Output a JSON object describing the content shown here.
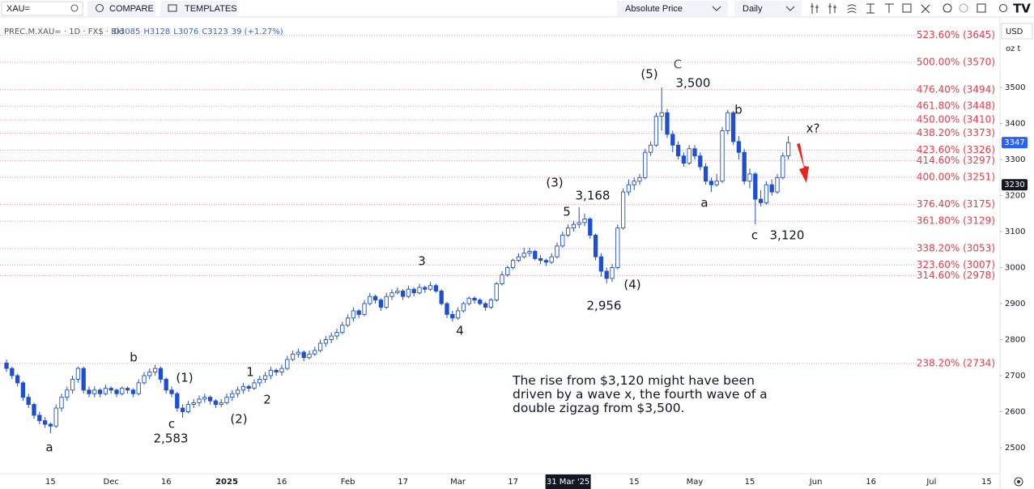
{
  "toolbar": {
    "symbol": "XAU=",
    "compare": "COMPARE",
    "templates": "TEMPLATES",
    "price_mode": "Absolute Price",
    "interval": "Daily"
  },
  "chart_data": {
    "type": "candlestick",
    "symbol_info": "PREC.M.XAU= · 1D · FX$ · Bid",
    "ohlc_legend": [
      "O3085",
      "H3128",
      "L3076",
      "C3123",
      "39 (+1.27%)"
    ],
    "currency": "USD",
    "unit": "oz t",
    "categories": [
      null,
      null,
      null,
      null,
      null,
      null,
      null,
      null,
      "15",
      null,
      null,
      null,
      null,
      null,
      null,
      null,
      null,
      null,
      null,
      "Dec",
      null,
      null,
      null,
      null,
      null,
      null,
      null,
      null,
      null,
      "16",
      null,
      null,
      null,
      null,
      null,
      null,
      null,
      null,
      null,
      null,
      "2025",
      null,
      null,
      null,
      null,
      null,
      null,
      null,
      null,
      null,
      "16",
      null,
      null,
      null,
      null,
      null,
      null,
      null,
      null,
      null,
      null,
      null,
      "Feb",
      null,
      null,
      null,
      null,
      null,
      null,
      null,
      null,
      null,
      "17",
      null,
      null,
      null,
      null,
      null,
      null,
      null,
      null,
      null,
      "Mar",
      null,
      null,
      null,
      null,
      null,
      null,
      null,
      null,
      null,
      "17",
      null,
      null,
      null,
      null,
      null,
      null,
      null,
      null,
      null,
      "31 Mar '25",
      null,
      null,
      null,
      null,
      null,
      null,
      null,
      null,
      null,
      null,
      null,
      "15",
      null,
      null,
      null,
      null,
      null,
      null,
      null,
      null,
      null,
      null,
      "May",
      null,
      null,
      null,
      null,
      null,
      null,
      null,
      null,
      null,
      "15",
      null,
      null,
      null,
      null,
      null,
      null,
      null,
      null,
      null,
      null,
      null,
      "Jun",
      null,
      null,
      null,
      null,
      null,
      null,
      null,
      null,
      null,
      "16",
      null,
      null,
      null,
      null,
      null,
      null,
      null,
      null,
      null,
      null,
      "Jul",
      null,
      null,
      null,
      null,
      null,
      null,
      null,
      null,
      null,
      "15",
      null,
      null
    ],
    "values": [
      [
        2735,
        2745,
        2710,
        2720
      ],
      [
        2720,
        2725,
        2690,
        2700
      ],
      [
        2700,
        2705,
        2670,
        2680
      ],
      [
        2680,
        2685,
        2630,
        2640
      ],
      [
        2640,
        2650,
        2610,
        2620
      ],
      [
        2620,
        2625,
        2580,
        2590
      ],
      [
        2590,
        2600,
        2565,
        2575
      ],
      [
        2575,
        2585,
        2555,
        2565
      ],
      [
        2565,
        2570,
        2540,
        2560
      ],
      [
        2560,
        2620,
        2555,
        2610
      ],
      [
        2610,
        2650,
        2600,
        2640
      ],
      [
        2640,
        2670,
        2630,
        2660
      ],
      [
        2660,
        2700,
        2650,
        2690
      ],
      [
        2690,
        2725,
        2680,
        2720
      ],
      [
        2720,
        2725,
        2650,
        2660
      ],
      [
        2660,
        2670,
        2640,
        2650
      ],
      [
        2650,
        2670,
        2640,
        2660
      ],
      [
        2660,
        2665,
        2640,
        2650
      ],
      [
        2650,
        2675,
        2645,
        2665
      ],
      [
        2665,
        2670,
        2650,
        2660
      ],
      [
        2660,
        2665,
        2640,
        2650
      ],
      [
        2650,
        2670,
        2645,
        2665
      ],
      [
        2665,
        2670,
        2650,
        2660
      ],
      [
        2660,
        2665,
        2640,
        2650
      ],
      [
        2650,
        2690,
        2645,
        2680
      ],
      [
        2680,
        2710,
        2675,
        2700
      ],
      [
        2700,
        2720,
        2690,
        2710
      ],
      [
        2710,
        2730,
        2700,
        2720
      ],
      [
        2720,
        2725,
        2680,
        2690
      ],
      [
        2690,
        2695,
        2650,
        2660
      ],
      [
        2660,
        2670,
        2640,
        2650
      ],
      [
        2650,
        2655,
        2600,
        2610
      ],
      [
        2610,
        2620,
        2583,
        2600
      ],
      [
        2600,
        2630,
        2595,
        2620
      ],
      [
        2620,
        2635,
        2610,
        2625
      ],
      [
        2625,
        2645,
        2615,
        2635
      ],
      [
        2635,
        2650,
        2625,
        2640
      ],
      [
        2640,
        2645,
        2620,
        2630
      ],
      [
        2630,
        2635,
        2610,
        2620
      ],
      [
        2620,
        2635,
        2612,
        2625
      ],
      [
        2625,
        2650,
        2620,
        2640
      ],
      [
        2640,
        2660,
        2630,
        2650
      ],
      [
        2650,
        2670,
        2640,
        2660
      ],
      [
        2660,
        2680,
        2650,
        2670
      ],
      [
        2670,
        2675,
        2655,
        2665
      ],
      [
        2665,
        2690,
        2660,
        2680
      ],
      [
        2680,
        2700,
        2670,
        2690
      ],
      [
        2690,
        2710,
        2680,
        2700
      ],
      [
        2700,
        2725,
        2690,
        2715
      ],
      [
        2715,
        2720,
        2700,
        2710
      ],
      [
        2710,
        2730,
        2700,
        2720
      ],
      [
        2720,
        2755,
        2715,
        2745
      ],
      [
        2745,
        2770,
        2740,
        2760
      ],
      [
        2760,
        2775,
        2750,
        2765
      ],
      [
        2765,
        2770,
        2740,
        2750
      ],
      [
        2750,
        2770,
        2745,
        2760
      ],
      [
        2760,
        2780,
        2755,
        2770
      ],
      [
        2770,
        2800,
        2765,
        2790
      ],
      [
        2790,
        2810,
        2780,
        2800
      ],
      [
        2800,
        2820,
        2790,
        2810
      ],
      [
        2810,
        2830,
        2800,
        2820
      ],
      [
        2820,
        2850,
        2815,
        2840
      ],
      [
        2840,
        2870,
        2835,
        2860
      ],
      [
        2860,
        2890,
        2850,
        2880
      ],
      [
        2880,
        2885,
        2860,
        2870
      ],
      [
        2870,
        2910,
        2865,
        2900
      ],
      [
        2900,
        2930,
        2895,
        2920
      ],
      [
        2920,
        2925,
        2900,
        2910
      ],
      [
        2910,
        2915,
        2880,
        2890
      ],
      [
        2890,
        2930,
        2885,
        2920
      ],
      [
        2920,
        2940,
        2910,
        2930
      ],
      [
        2930,
        2945,
        2925,
        2935
      ],
      [
        2935,
        2940,
        2910,
        2920
      ],
      [
        2920,
        2950,
        2915,
        2940
      ],
      [
        2940,
        2945,
        2920,
        2930
      ],
      [
        2930,
        2955,
        2925,
        2945
      ],
      [
        2945,
        2950,
        2930,
        2940
      ],
      [
        2940,
        2960,
        2935,
        2950
      ],
      [
        2950,
        2955,
        2930,
        2935
      ],
      [
        2935,
        2940,
        2895,
        2900
      ],
      [
        2900,
        2905,
        2860,
        2870
      ],
      [
        2870,
        2880,
        2850,
        2860
      ],
      [
        2860,
        2890,
        2855,
        2880
      ],
      [
        2880,
        2905,
        2875,
        2900
      ],
      [
        2900,
        2920,
        2895,
        2915
      ],
      [
        2915,
        2920,
        2900,
        2910
      ],
      [
        2910,
        2915,
        2895,
        2900
      ],
      [
        2900,
        2905,
        2880,
        2890
      ],
      [
        2890,
        2915,
        2885,
        2910
      ],
      [
        2910,
        2960,
        2905,
        2955
      ],
      [
        2955,
        2990,
        2950,
        2980
      ],
      [
        2980,
        3005,
        2975,
        3000
      ],
      [
        3000,
        3025,
        2995,
        3020
      ],
      [
        3020,
        3040,
        3015,
        3030
      ],
      [
        3030,
        3055,
        3025,
        3040
      ],
      [
        3040,
        3055,
        3030,
        3045
      ],
      [
        3045,
        3050,
        3020,
        3025
      ],
      [
        3025,
        3035,
        3010,
        3020
      ],
      [
        3020,
        3025,
        3005,
        3015
      ],
      [
        3015,
        3040,
        3010,
        3030
      ],
      [
        3030,
        3070,
        3025,
        3060
      ],
      [
        3060,
        3100,
        3055,
        3090
      ],
      [
        3090,
        3120,
        3085,
        3110
      ],
      [
        3110,
        3130,
        3100,
        3120
      ],
      [
        3120,
        3168,
        3110,
        3125
      ],
      [
        3125,
        3150,
        3115,
        3135
      ],
      [
        3135,
        3140,
        3080,
        3090
      ],
      [
        3090,
        3095,
        3020,
        3030
      ],
      [
        3030,
        3040,
        2975,
        2990
      ],
      [
        2990,
        3000,
        2956,
        2970
      ],
      [
        2970,
        3010,
        2960,
        3000
      ],
      [
        3000,
        3120,
        2995,
        3110
      ],
      [
        3110,
        3220,
        3105,
        3210
      ],
      [
        3210,
        3245,
        3200,
        3230
      ],
      [
        3230,
        3250,
        3215,
        3240
      ],
      [
        3240,
        3260,
        3230,
        3250
      ],
      [
        3250,
        3330,
        3245,
        3320
      ],
      [
        3320,
        3350,
        3310,
        3340
      ],
      [
        3340,
        3430,
        3335,
        3420
      ],
      [
        3420,
        3500,
        3380,
        3430
      ],
      [
        3430,
        3440,
        3360,
        3370
      ],
      [
        3370,
        3380,
        3320,
        3340
      ],
      [
        3340,
        3350,
        3300,
        3310
      ],
      [
        3310,
        3320,
        3280,
        3290
      ],
      [
        3290,
        3340,
        3285,
        3330
      ],
      [
        3330,
        3340,
        3300,
        3310
      ],
      [
        3310,
        3320,
        3270,
        3280
      ],
      [
        3280,
        3290,
        3230,
        3240
      ],
      [
        3240,
        3250,
        3210,
        3230
      ],
      [
        3230,
        3260,
        3225,
        3240
      ],
      [
        3240,
        3390,
        3235,
        3380
      ],
      [
        3380,
        3438,
        3370,
        3430
      ],
      [
        3430,
        3435,
        3340,
        3350
      ],
      [
        3350,
        3365,
        3300,
        3320
      ],
      [
        3320,
        3330,
        3230,
        3240
      ],
      [
        3240,
        3275,
        3220,
        3260
      ],
      [
        3260,
        3265,
        3120,
        3190
      ],
      [
        3190,
        3215,
        3170,
        3180
      ],
      [
        3180,
        3240,
        3175,
        3230
      ],
      [
        3230,
        3245,
        3200,
        3210
      ],
      [
        3210,
        3260,
        3205,
        3250
      ],
      [
        3250,
        3320,
        3245,
        3310
      ],
      [
        3310,
        3365,
        3300,
        3347
      ],
      null,
      null,
      null,
      null,
      null,
      null,
      null,
      null,
      null,
      null,
      null,
      null,
      null,
      null,
      null,
      null,
      null,
      null,
      null,
      null,
      null,
      null,
      null,
      null,
      null,
      null,
      null,
      null,
      null,
      null,
      null,
      null,
      null,
      null,
      null,
      null,
      null,
      null
    ],
    "up_color": "#ffffff",
    "down_color": "#1e4fd0",
    "border_color": "#1e4fd0",
    "ylim": [
      2428,
      3698
    ],
    "yticks": [
      2500,
      2600,
      2700,
      2800,
      2900,
      3000,
      3100,
      3200,
      3300,
      3400,
      3500
    ],
    "level_color": "#f23645",
    "levels": [
      {
        "value": 3645,
        "label": "523.60% (3645)"
      },
      {
        "value": 3570,
        "label": "500.00% (3570)"
      },
      {
        "value": 3494,
        "label": "476.40% (3494)"
      },
      {
        "value": 3448,
        "label": "461.80% (3448)"
      },
      {
        "value": 3410,
        "label": "450.00% (3410)"
      },
      {
        "value": 3373,
        "label": "438.20% (3373)"
      },
      {
        "value": 3326,
        "label": "423.60% (3326)"
      },
      {
        "value": 3297,
        "label": "414.60% (3297)"
      },
      {
        "value": 3251,
        "label": "400.00% (3251)"
      },
      {
        "value": 3175,
        "label": "376.40% (3175)"
      },
      {
        "value": 3129,
        "label": "361.80% (3129)"
      },
      {
        "value": 3053,
        "label": "338.20% (3053)"
      },
      {
        "value": 3007,
        "label": "323.60% (3007)"
      },
      {
        "value": 2978,
        "label": "314.60% (2978)"
      },
      {
        "value": 2734,
        "label": "238.20% (2734)"
      }
    ],
    "last_price": 3347,
    "last_price_color": "#2962ff",
    "crosshair": {
      "x": 102,
      "y": 3230
    },
    "annotations": [
      "a",
      "b",
      "(1)",
      "c",
      "2,583",
      "(2)",
      "1",
      "2",
      "3",
      "4",
      "(3)",
      "3,168",
      "5",
      "(4)",
      "2,956",
      "(5)",
      "C",
      "3,500",
      "b",
      "a",
      "c",
      "3,120",
      "x?"
    ],
    "note": "The rise from $3,120 might have been driven by a wave x, the fourth wave of a double zigzag from $3,500."
  }
}
